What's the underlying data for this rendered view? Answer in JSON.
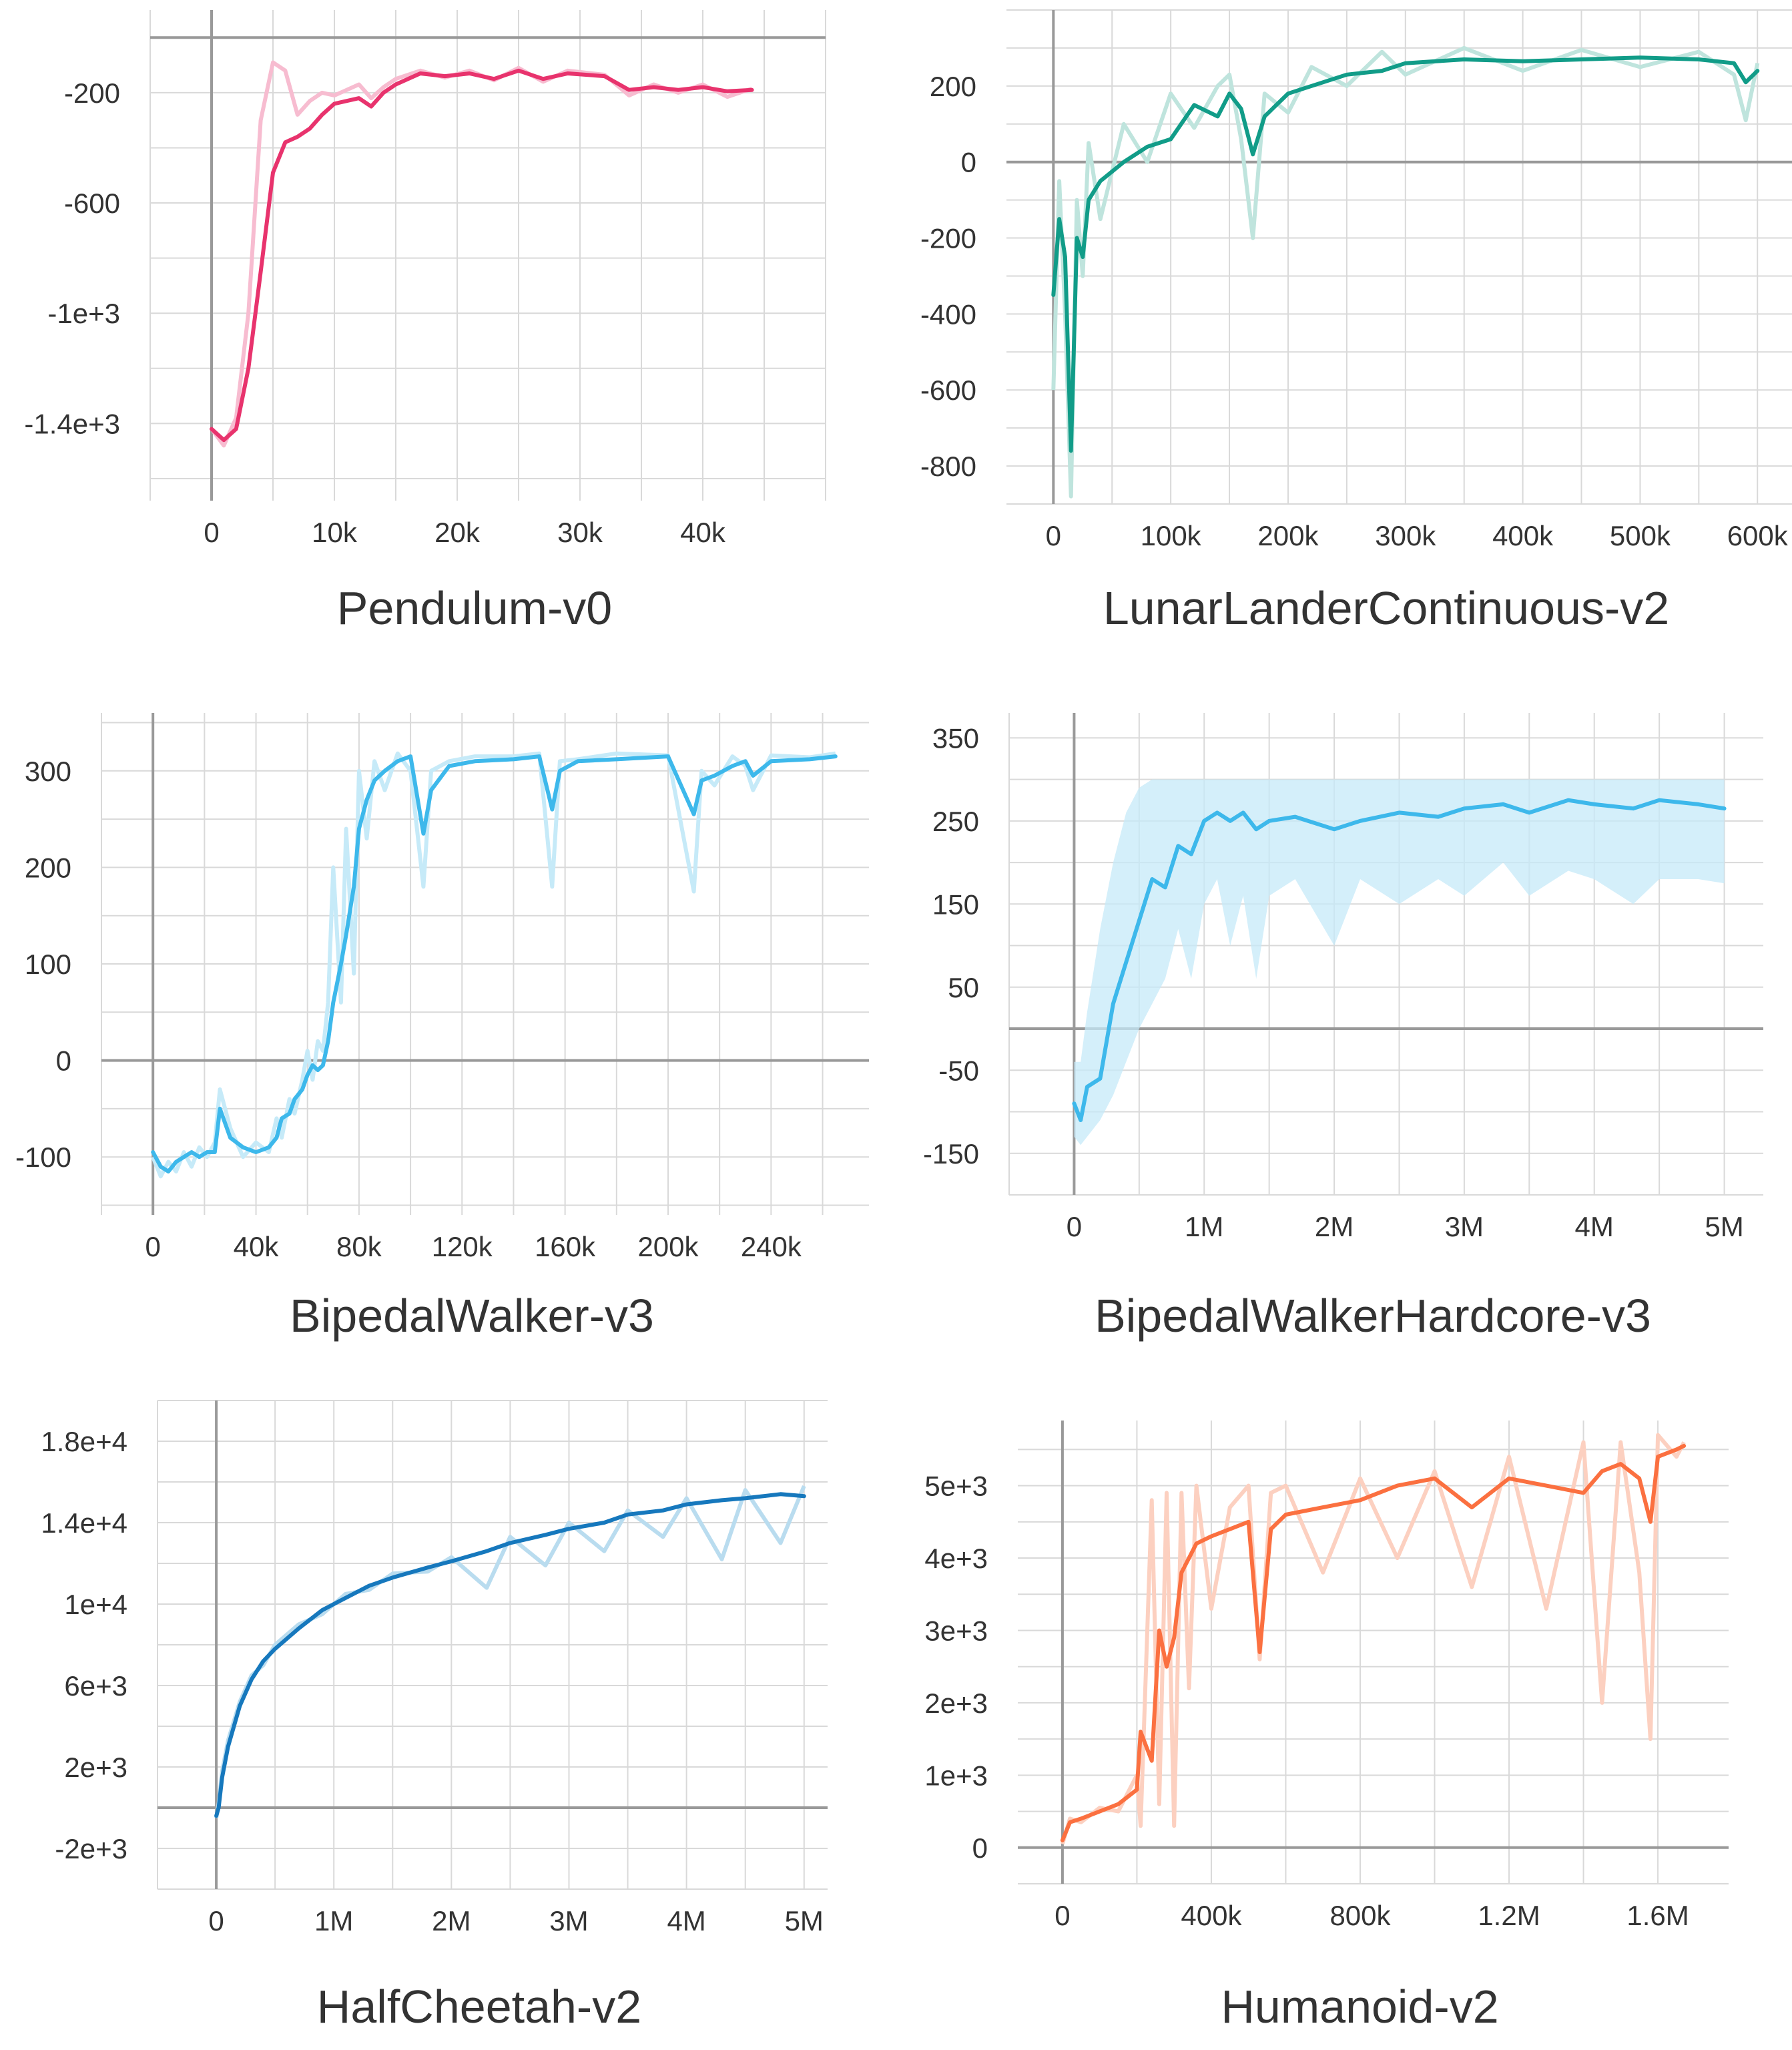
{
  "chart_data": [
    {
      "type": "line",
      "title": "Pendulum-v0",
      "xlabel": "",
      "ylabel": "",
      "xlim": [
        -5000,
        50000
      ],
      "ylim": [
        -1680,
        100
      ],
      "xticks": [
        0,
        10000,
        20000,
        30000,
        40000
      ],
      "xtick_labels": [
        "0",
        "10k",
        "20k",
        "30k",
        "40k"
      ],
      "yticks": [
        -1400,
        -1000,
        -600,
        -200
      ],
      "ytick_labels": [
        "-1.4e+3",
        "-1e+3",
        "-600",
        "-200"
      ],
      "grid": true,
      "color": "#e8336d",
      "raw_color": "#f7bcd0",
      "band": false,
      "series": [
        {
          "x": [
            0,
            1000,
            2000,
            3000,
            4000,
            5000,
            6000,
            7000,
            8000,
            9000,
            10000,
            12000,
            13000,
            14000,
            15000,
            17000,
            19000,
            21000,
            23000,
            25000,
            27000,
            29000,
            32000,
            34000,
            36000,
            38000,
            40000,
            42000,
            44000
          ],
          "y": [
            -1420,
            -1460,
            -1420,
            -1200,
            -850,
            -490,
            -380,
            -360,
            -330,
            -280,
            -240,
            -220,
            -250,
            -200,
            -170,
            -130,
            -140,
            -130,
            -150,
            -120,
            -150,
            -130,
            -140,
            -190,
            -180,
            -190,
            -180,
            -195,
            -190
          ],
          "raw": [
            -1420,
            -1480,
            -1380,
            -1000,
            -300,
            -90,
            -120,
            -280,
            -230,
            -200,
            -210,
            -170,
            -220,
            -180,
            -150,
            -120,
            -145,
            -120,
            -155,
            -110,
            -160,
            -120,
            -135,
            -210,
            -170,
            -200,
            -170,
            -215,
            -185
          ]
        }
      ]
    },
    {
      "type": "line",
      "title": "LunarLanderContinuous-v2",
      "xlabel": "",
      "ylabel": "",
      "xlim": [
        -40000,
        630000
      ],
      "ylim": [
        -900,
        400
      ],
      "xticks": [
        0,
        100000,
        200000,
        300000,
        400000,
        500000,
        600000
      ],
      "xtick_labels": [
        "0",
        "100k",
        "200k",
        "300k",
        "400k",
        "500k",
        "600k"
      ],
      "yticks": [
        -800,
        -600,
        -400,
        -200,
        0,
        200
      ],
      "ytick_labels": [
        "-800",
        "-600",
        "-400",
        "-200",
        "0",
        "200"
      ],
      "grid": true,
      "color": "#119c88",
      "raw_color": "#bfe4dd",
      "band": false,
      "series": [
        {
          "x": [
            0,
            5000,
            10000,
            15000,
            20000,
            25000,
            30000,
            40000,
            60000,
            80000,
            100000,
            120000,
            140000,
            150000,
            160000,
            170000,
            180000,
            200000,
            220000,
            250000,
            280000,
            300000,
            350000,
            400000,
            450000,
            500000,
            550000,
            580000,
            590000,
            600000
          ],
          "y": [
            -350,
            -150,
            -250,
            -760,
            -200,
            -250,
            -100,
            -50,
            0,
            40,
            60,
            150,
            120,
            180,
            140,
            20,
            120,
            180,
            200,
            230,
            240,
            260,
            270,
            265,
            270,
            275,
            270,
            260,
            210,
            240
          ],
          "raw": [
            -600,
            -50,
            -400,
            -880,
            -100,
            -300,
            50,
            -150,
            100,
            0,
            180,
            90,
            200,
            230,
            60,
            -200,
            180,
            130,
            250,
            200,
            290,
            230,
            300,
            240,
            295,
            250,
            290,
            230,
            110,
            260
          ]
        }
      ]
    },
    {
      "type": "line",
      "title": "BipedalWalker-v3",
      "xlabel": "",
      "ylabel": "",
      "xticks": [
        0,
        40000,
        80000,
        120000,
        160000,
        200000,
        240000
      ],
      "xtick_labels": [
        "0",
        "40k",
        "80k",
        "120k",
        "160k",
        "200k",
        "240k"
      ],
      "xlim": [
        -20000,
        278000
      ],
      "ylim": [
        -160,
        360
      ],
      "yticks": [
        -100,
        0,
        100,
        200,
        300
      ],
      "ytick_labels": [
        "-100",
        "0",
        "100",
        "200",
        "300"
      ],
      "grid": true,
      "color": "#3db8eb",
      "raw_color": "#c6eaf8",
      "band": false,
      "series": [
        {
          "x": [
            0,
            3000,
            6000,
            9000,
            12000,
            15000,
            18000,
            21000,
            24000,
            26000,
            30000,
            35000,
            40000,
            45000,
            48000,
            50000,
            53000,
            55000,
            58000,
            60000,
            62000,
            64000,
            66000,
            68000,
            70000,
            73000,
            75000,
            78000,
            80000,
            83000,
            86000,
            90000,
            95000,
            100000,
            105000,
            108000,
            115000,
            125000,
            140000,
            150000,
            155000,
            158000,
            165000,
            180000,
            200000,
            210000,
            213000,
            218000,
            225000,
            230000,
            233000,
            240000,
            255000,
            265000
          ],
          "y": [
            -95,
            -110,
            -115,
            -105,
            -100,
            -95,
            -100,
            -95,
            -95,
            -50,
            -80,
            -90,
            -95,
            -90,
            -80,
            -60,
            -55,
            -40,
            -30,
            -15,
            -5,
            -10,
            -5,
            20,
            60,
            100,
            130,
            180,
            240,
            270,
            290,
            300,
            310,
            315,
            235,
            280,
            305,
            310,
            312,
            315,
            260,
            300,
            310,
            312,
            315,
            255,
            290,
            295,
            305,
            310,
            295,
            310,
            312,
            315
          ],
          "raw": [
            -100,
            -120,
            -105,
            -115,
            -95,
            -110,
            -90,
            -100,
            -85,
            -30,
            -70,
            -100,
            -85,
            -95,
            -60,
            -80,
            -40,
            -55,
            -20,
            10,
            -20,
            20,
            10,
            60,
            200,
            60,
            240,
            90,
            300,
            230,
            310,
            280,
            318,
            300,
            180,
            300,
            310,
            315,
            315,
            318,
            180,
            310,
            312,
            318,
            316,
            175,
            300,
            285,
            315,
            305,
            280,
            316,
            314,
            318
          ]
        }
      ]
    },
    {
      "type": "line",
      "title": "BipedalWalkerHardcore-v3",
      "xlabel": "",
      "ylabel": "",
      "xlim": [
        -500000,
        5300000
      ],
      "ylim": [
        -200,
        380
      ],
      "xticks": [
        0,
        1000000,
        2000000,
        3000000,
        4000000,
        5000000
      ],
      "xtick_labels": [
        "0",
        "1M",
        "2M",
        "3M",
        "4M",
        "5M"
      ],
      "yticks": [
        -150,
        -50,
        50,
        150,
        250,
        350
      ],
      "ytick_labels": [
        "-150",
        "-50",
        "50",
        "150",
        "250",
        "350"
      ],
      "grid": true,
      "color": "#3db8eb",
      "raw_color": "#c6eaf8",
      "band": true,
      "series": [
        {
          "x": [
            0,
            50000,
            100000,
            200000,
            300000,
            400000,
            500000,
            600000,
            700000,
            800000,
            900000,
            1000000,
            1100000,
            1200000,
            1300000,
            1400000,
            1500000,
            1700000,
            2000000,
            2200000,
            2500000,
            2800000,
            3000000,
            3300000,
            3500000,
            3800000,
            4000000,
            4300000,
            4500000,
            4800000,
            5000000
          ],
          "y": [
            -90,
            -110,
            -70,
            -60,
            30,
            80,
            130,
            180,
            170,
            220,
            210,
            250,
            260,
            250,
            260,
            240,
            250,
            255,
            240,
            250,
            260,
            255,
            265,
            270,
            260,
            275,
            270,
            265,
            275,
            270,
            265
          ],
          "upper": [
            -40,
            -40,
            20,
            120,
            200,
            260,
            290,
            300,
            300,
            300,
            300,
            300,
            300,
            300,
            300,
            300,
            300,
            300,
            300,
            300,
            300,
            300,
            300,
            300,
            300,
            300,
            300,
            300,
            300,
            300,
            300
          ],
          "lower": [
            -130,
            -140,
            -130,
            -110,
            -80,
            -40,
            0,
            30,
            60,
            120,
            60,
            150,
            180,
            100,
            160,
            60,
            160,
            180,
            100,
            180,
            150,
            180,
            160,
            200,
            160,
            190,
            180,
            150,
            180,
            180,
            175
          ]
        }
      ]
    },
    {
      "type": "line",
      "title": "HalfCheetah-v2",
      "xlabel": "",
      "ylabel": "",
      "xlim": [
        -500000,
        5200000
      ],
      "ylim": [
        -4000,
        20000
      ],
      "xticks": [
        0,
        1000000,
        2000000,
        3000000,
        4000000,
        5000000
      ],
      "xtick_labels": [
        "0",
        "1M",
        "2M",
        "3M",
        "4M",
        "5M"
      ],
      "yticks": [
        -2000,
        2000,
        6000,
        10000,
        14000,
        18000
      ],
      "ytick_labels": [
        "-2e+3",
        "2e+3",
        "6e+3",
        "1e+4",
        "1.4e+4",
        "1.8e+4"
      ],
      "grid": true,
      "color": "#1678bd",
      "raw_color": "#b9dcef",
      "band": false,
      "series": [
        {
          "x": [
            0,
            20000,
            50000,
            100000,
            200000,
            300000,
            400000,
            500000,
            700000,
            900000,
            1100000,
            1300000,
            1500000,
            1800000,
            2000000,
            2300000,
            2500000,
            2800000,
            3000000,
            3300000,
            3500000,
            3800000,
            4000000,
            4300000,
            4500000,
            4800000,
            5000000
          ],
          "y": [
            -400,
            0,
            1500,
            3000,
            5000,
            6300,
            7200,
            7800,
            8800,
            9700,
            10300,
            10900,
            11300,
            11800,
            12100,
            12600,
            13000,
            13400,
            13700,
            14000,
            14400,
            14600,
            14900,
            15100,
            15200,
            15400,
            15300
          ],
          "raw": [
            -500,
            200,
            1800,
            3300,
            5200,
            6500,
            7000,
            8000,
            9000,
            9500,
            10500,
            10700,
            11500,
            11600,
            12300,
            10800,
            13300,
            11900,
            14000,
            12600,
            14600,
            13300,
            15200,
            12200,
            15600,
            13000,
            15800
          ]
        }
      ]
    },
    {
      "type": "line",
      "title": "Humanoid-v2",
      "xlabel": "",
      "ylabel": "",
      "xlim": [
        -120000,
        1790000
      ],
      "ylim": [
        -500,
        5900
      ],
      "xticks": [
        0,
        400000,
        800000,
        1200000,
        1600000
      ],
      "xtick_labels": [
        "0",
        "400k",
        "800k",
        "1.2M",
        "1.6M"
      ],
      "yticks": [
        0,
        1000,
        2000,
        3000,
        4000,
        5000
      ],
      "ytick_labels": [
        "0",
        "1e+3",
        "2e+3",
        "3e+3",
        "4e+3",
        "5e+3"
      ],
      "grid": true,
      "color": "#fb7040",
      "raw_color": "#fcd0c0",
      "band": false,
      "series": [
        {
          "x": [
            0,
            20000,
            50000,
            100000,
            150000,
            200000,
            210000,
            240000,
            260000,
            280000,
            300000,
            320000,
            340000,
            360000,
            400000,
            450000,
            500000,
            530000,
            560000,
            600000,
            700000,
            800000,
            900000,
            1000000,
            1100000,
            1200000,
            1300000,
            1400000,
            1450000,
            1500000,
            1550000,
            1580000,
            1600000,
            1650000,
            1670000
          ],
          "y": [
            100,
            350,
            400,
            500,
            600,
            800,
            1600,
            1200,
            3000,
            2500,
            2900,
            3800,
            4000,
            4200,
            4300,
            4400,
            4500,
            2700,
            4400,
            4600,
            4700,
            4800,
            5000,
            5100,
            4700,
            5100,
            5000,
            4900,
            5200,
            5300,
            5100,
            4500,
            5400,
            5500,
            5550
          ],
          "raw": [
            50,
            400,
            350,
            550,
            500,
            1000,
            300,
            4800,
            600,
            4900,
            300,
            4900,
            2200,
            5000,
            3300,
            4700,
            5000,
            2600,
            4900,
            5000,
            3800,
            5100,
            4000,
            5200,
            3600,
            5400,
            3300,
            5600,
            2000,
            5600,
            3800,
            1500,
            5700,
            5400,
            5600
          ]
        }
      ]
    }
  ]
}
